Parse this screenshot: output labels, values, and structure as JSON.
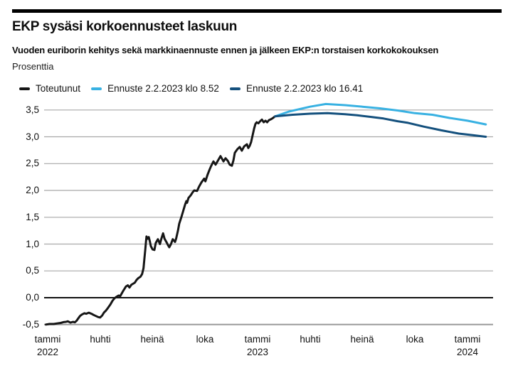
{
  "header": {
    "title": "EKP sysäsi korkoennusteet laskuun",
    "subtitle": "Vuoden euriborin kehitys sekä markkinaennuste ennen ja jälkeen EKP:n torstaisen korkokokouksen",
    "unit_label": "Prosenttia"
  },
  "legend": [
    {
      "label": "Toteutunut",
      "color": "#161616"
    },
    {
      "label": "Ennuste 2.2.2023 klo 8.52",
      "color": "#38b1e2"
    },
    {
      "label": "Ennuste 2.2.2023 klo 16.41",
      "color": "#14507d"
    }
  ],
  "chart_data": {
    "type": "line",
    "title": "EKP sysäsi korkoennusteet laskuun",
    "subtitle": "Vuoden euriborin kehitys sekä markkinaennuste ennen ja jälkeen EKP:n torstaisen korkokokouksen",
    "ylabel": "Prosenttia",
    "xlabel": "",
    "ylim": [
      -0.5,
      3.5
    ],
    "grid": true,
    "legend_position": "top",
    "x_unit": "months since January 2022 (fractional)",
    "y_ticks": [
      {
        "label": "3,5",
        "v": 3.5
      },
      {
        "label": "3,0",
        "v": 3.0
      },
      {
        "label": "2,5",
        "v": 2.5
      },
      {
        "label": "2,0",
        "v": 2.0
      },
      {
        "label": "1,5",
        "v": 1.5
      },
      {
        "label": "1,0",
        "v": 1.0
      },
      {
        "label": "0,5",
        "v": 0.5
      },
      {
        "label": "0,0",
        "v": 0.0
      },
      {
        "label": "-0,5",
        "v": -0.5
      }
    ],
    "x_ticks": [
      {
        "label": "tammi",
        "sub": "2022",
        "m": 0
      },
      {
        "label": "huhti",
        "m": 3
      },
      {
        "label": "heinä",
        "m": 6
      },
      {
        "label": "loka",
        "m": 9
      },
      {
        "label": "tammi",
        "sub": "2023",
        "m": 12
      },
      {
        "label": "huhti",
        "m": 15
      },
      {
        "label": "heinä",
        "m": 18
      },
      {
        "label": "loka",
        "m": 21
      },
      {
        "label": "tammi",
        "sub": "2024",
        "m": 24
      }
    ],
    "series": [
      {
        "name": "Toteutunut",
        "color": "#161616",
        "points": [
          [
            -0.1,
            -0.5
          ],
          [
            0.1,
            -0.49
          ],
          [
            0.35,
            -0.49
          ],
          [
            0.55,
            -0.48
          ],
          [
            0.75,
            -0.47
          ],
          [
            0.9,
            -0.455
          ],
          [
            1.05,
            -0.45
          ],
          [
            1.15,
            -0.44
          ],
          [
            1.3,
            -0.465
          ],
          [
            1.45,
            -0.45
          ],
          [
            1.55,
            -0.46
          ],
          [
            1.65,
            -0.43
          ],
          [
            1.75,
            -0.385
          ],
          [
            1.85,
            -0.34
          ],
          [
            1.95,
            -0.315
          ],
          [
            2.1,
            -0.29
          ],
          [
            2.2,
            -0.3
          ],
          [
            2.35,
            -0.28
          ],
          [
            2.5,
            -0.3
          ],
          [
            2.62,
            -0.32
          ],
          [
            2.75,
            -0.34
          ],
          [
            2.88,
            -0.36
          ],
          [
            3.0,
            -0.37
          ],
          [
            3.12,
            -0.33
          ],
          [
            3.22,
            -0.275
          ],
          [
            3.32,
            -0.245
          ],
          [
            3.45,
            -0.19
          ],
          [
            3.58,
            -0.13
          ],
          [
            3.7,
            -0.06
          ],
          [
            3.82,
            -0.01
          ],
          [
            3.95,
            0.02
          ],
          [
            4.05,
            0.04
          ],
          [
            4.15,
            0.03
          ],
          [
            4.27,
            0.1
          ],
          [
            4.38,
            0.16
          ],
          [
            4.48,
            0.21
          ],
          [
            4.58,
            0.23
          ],
          [
            4.68,
            0.19
          ],
          [
            4.78,
            0.24
          ],
          [
            4.88,
            0.26
          ],
          [
            4.98,
            0.28
          ],
          [
            5.08,
            0.33
          ],
          [
            5.2,
            0.37
          ],
          [
            5.3,
            0.39
          ],
          [
            5.4,
            0.44
          ],
          [
            5.48,
            0.55
          ],
          [
            5.53,
            0.72
          ],
          [
            5.58,
            0.9
          ],
          [
            5.62,
            1.05
          ],
          [
            5.65,
            1.14
          ],
          [
            5.72,
            1.1
          ],
          [
            5.78,
            1.13
          ],
          [
            5.84,
            1.05
          ],
          [
            5.9,
            0.96
          ],
          [
            6.0,
            0.9
          ],
          [
            6.1,
            0.89
          ],
          [
            6.18,
            1.02
          ],
          [
            6.3,
            1.09
          ],
          [
            6.42,
            1.0
          ],
          [
            6.5,
            1.1
          ],
          [
            6.6,
            1.2
          ],
          [
            6.68,
            1.1
          ],
          [
            6.8,
            1.03
          ],
          [
            6.88,
            0.98
          ],
          [
            6.95,
            0.94
          ],
          [
            7.05,
            1.0
          ],
          [
            7.15,
            1.09
          ],
          [
            7.28,
            1.04
          ],
          [
            7.35,
            1.11
          ],
          [
            7.45,
            1.25
          ],
          [
            7.52,
            1.38
          ],
          [
            7.65,
            1.51
          ],
          [
            7.77,
            1.64
          ],
          [
            7.85,
            1.73
          ],
          [
            7.93,
            1.8
          ],
          [
            7.97,
            1.77
          ],
          [
            8.05,
            1.86
          ],
          [
            8.18,
            1.91
          ],
          [
            8.3,
            1.97
          ],
          [
            8.38,
            2.0
          ],
          [
            8.54,
            1.99
          ],
          [
            8.67,
            2.08
          ],
          [
            8.79,
            2.15
          ],
          [
            8.95,
            2.22
          ],
          [
            9.02,
            2.17
          ],
          [
            9.15,
            2.3
          ],
          [
            9.27,
            2.4
          ],
          [
            9.35,
            2.46
          ],
          [
            9.48,
            2.54
          ],
          [
            9.6,
            2.48
          ],
          [
            9.76,
            2.57
          ],
          [
            9.88,
            2.64
          ],
          [
            10.05,
            2.54
          ],
          [
            10.17,
            2.6
          ],
          [
            10.3,
            2.55
          ],
          [
            10.41,
            2.48
          ],
          [
            10.53,
            2.46
          ],
          [
            10.62,
            2.56
          ],
          [
            10.7,
            2.7
          ],
          [
            10.85,
            2.77
          ],
          [
            10.98,
            2.81
          ],
          [
            11.1,
            2.74
          ],
          [
            11.23,
            2.82
          ],
          [
            11.39,
            2.86
          ],
          [
            11.47,
            2.79
          ],
          [
            11.55,
            2.83
          ],
          [
            11.63,
            2.9
          ],
          [
            11.72,
            3.03
          ],
          [
            11.8,
            3.15
          ],
          [
            11.88,
            3.24
          ],
          [
            11.95,
            3.27
          ],
          [
            12.05,
            3.25
          ],
          [
            12.15,
            3.29
          ],
          [
            12.25,
            3.32
          ],
          [
            12.35,
            3.27
          ],
          [
            12.45,
            3.3
          ],
          [
            12.55,
            3.27
          ],
          [
            12.65,
            3.31
          ],
          [
            12.78,
            3.33
          ],
          [
            12.88,
            3.35
          ],
          [
            13.0,
            3.38
          ]
        ]
      },
      {
        "name": "Ennuste 2.2.2023 klo 8.52",
        "color": "#38b1e2",
        "points": [
          [
            13.0,
            3.38
          ],
          [
            13.8,
            3.47
          ],
          [
            15.0,
            3.56
          ],
          [
            15.9,
            3.61
          ],
          [
            17.0,
            3.59
          ],
          [
            18.0,
            3.56
          ],
          [
            19.0,
            3.53
          ],
          [
            20.0,
            3.49
          ],
          [
            21.0,
            3.44
          ],
          [
            22.0,
            3.41
          ],
          [
            23.0,
            3.35
          ],
          [
            24.0,
            3.3
          ],
          [
            25.05,
            3.23
          ]
        ]
      },
      {
        "name": "Ennuste 2.2.2023 klo 16.41",
        "color": "#14507d",
        "points": [
          [
            13.0,
            3.38
          ],
          [
            14.0,
            3.41
          ],
          [
            15.0,
            3.43
          ],
          [
            16.0,
            3.44
          ],
          [
            17.0,
            3.42
          ],
          [
            17.7,
            3.4
          ],
          [
            18.5,
            3.37
          ],
          [
            19.2,
            3.34
          ],
          [
            20.0,
            3.29
          ],
          [
            20.6,
            3.26
          ],
          [
            21.5,
            3.19
          ],
          [
            22.5,
            3.12
          ],
          [
            23.5,
            3.06
          ],
          [
            24.3,
            3.03
          ],
          [
            25.05,
            3.0
          ]
        ]
      }
    ]
  }
}
